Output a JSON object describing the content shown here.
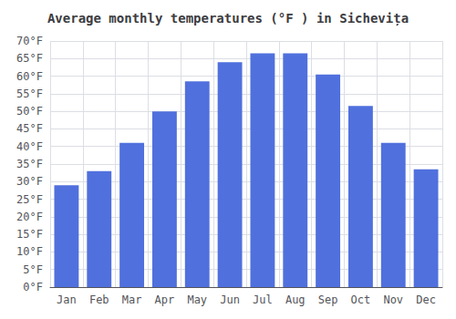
{
  "chart_data": {
    "type": "bar",
    "title": "Average monthly temperatures (°F ) in Sichevița",
    "categories": [
      "Jan",
      "Feb",
      "Mar",
      "Apr",
      "May",
      "Jun",
      "Jul",
      "Aug",
      "Sep",
      "Oct",
      "Nov",
      "Dec"
    ],
    "values": [
      29,
      33,
      41,
      50,
      58.5,
      64,
      66.5,
      66.5,
      60.5,
      51.5,
      41,
      33.5
    ],
    "ylim": [
      0,
      70
    ],
    "yticks": [
      {
        "value": 0,
        "label": "0°F"
      },
      {
        "value": 5,
        "label": "5°F"
      },
      {
        "value": 10,
        "label": "10°F"
      },
      {
        "value": 15,
        "label": "15°F"
      },
      {
        "value": 20,
        "label": "20°F"
      },
      {
        "value": 25,
        "label": "25°F"
      },
      {
        "value": 30,
        "label": "30°F"
      },
      {
        "value": 35,
        "label": "35°F"
      },
      {
        "value": 40,
        "label": "40°F"
      },
      {
        "value": 45,
        "label": "45°F"
      },
      {
        "value": 50,
        "label": "50°F"
      },
      {
        "value": 55,
        "label": "55°F"
      },
      {
        "value": 60,
        "label": "60°F"
      },
      {
        "value": 65,
        "label": "65°F"
      },
      {
        "value": 70,
        "label": "70°F"
      }
    ],
    "grid": true
  }
}
